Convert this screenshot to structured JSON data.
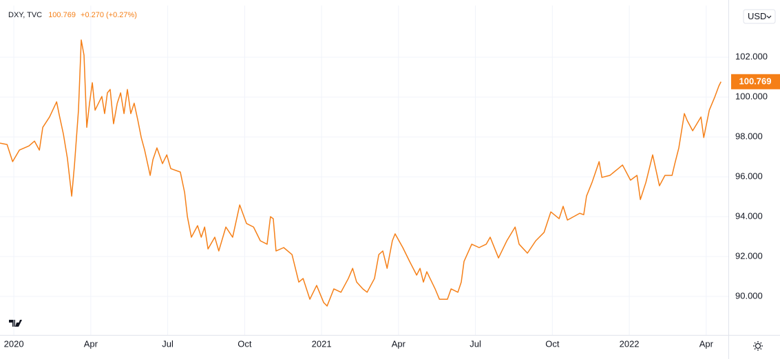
{
  "chart_data": {
    "type": "line",
    "symbol": "DXY, TVC",
    "change": "+0.270 (+0.27%)",
    "currency": "USD",
    "xlim": [
      2019.955,
      2022.322
    ],
    "xticks": [
      {
        "value": 2020,
        "label": "2020"
      },
      {
        "value": 2020.25,
        "label": "Apr"
      },
      {
        "value": 2020.5,
        "label": "Jul"
      },
      {
        "value": 2020.75,
        "label": "Oct"
      },
      {
        "value": 2021,
        "label": "2021"
      },
      {
        "value": 2021.25,
        "label": "Apr"
      },
      {
        "value": 2021.5,
        "label": "Jul"
      },
      {
        "value": 2021.75,
        "label": "Oct"
      },
      {
        "value": 2022,
        "label": "2022"
      },
      {
        "value": 2022.25,
        "label": "Apr"
      }
    ],
    "ylim": [
      88.07,
      104.59
    ],
    "yticks": [
      {
        "value": 90,
        "label": "90.000"
      },
      {
        "value": 92,
        "label": "92.000"
      },
      {
        "value": 94,
        "label": "94.000"
      },
      {
        "value": 96,
        "label": "96.000"
      },
      {
        "value": 98,
        "label": "98.000"
      },
      {
        "value": 100,
        "label": "100.000"
      },
      {
        "value": 102,
        "label": "102.000"
      }
    ],
    "grid": true,
    "series": [
      {
        "name": "DXY",
        "color": "#f57f17",
        "x": [
          2019.955,
          2019.978,
          2019.996,
          2020.018,
          2020.049,
          2020.067,
          2020.083,
          2020.094,
          2020.116,
          2020.139,
          2020.148,
          2020.161,
          2020.174,
          2020.188,
          2020.197,
          2020.21,
          2020.219,
          2020.228,
          2020.237,
          2020.246,
          2020.255,
          2020.264,
          2020.286,
          2020.295,
          2020.304,
          2020.313,
          2020.324,
          2020.336,
          2020.347,
          2020.358,
          2020.369,
          2020.38,
          2020.391,
          2020.403,
          2020.414,
          2020.425,
          2020.443,
          2020.452,
          2020.465,
          2020.483,
          2020.497,
          2020.51,
          2020.541,
          2020.555,
          2020.564,
          2020.577,
          2020.597,
          2020.609,
          2020.62,
          2020.631,
          2020.653,
          2020.666,
          2020.689,
          2020.711,
          2020.734,
          2020.756,
          2020.779,
          2020.801,
          2020.823,
          2020.834,
          2020.843,
          2020.852,
          2020.877,
          2020.904,
          2020.926,
          2020.94,
          2020.962,
          2020.984,
          2021.007,
          2021.018,
          2021.04,
          2021.063,
          2021.087,
          2021.101,
          2021.114,
          2021.134,
          2021.148,
          2021.172,
          2021.186,
          2021.199,
          2021.213,
          2021.23,
          2021.239,
          2021.264,
          2021.286,
          2021.309,
          2021.32,
          2021.331,
          2021.342,
          2021.369,
          2021.383,
          2021.409,
          2021.421,
          2021.443,
          2021.454,
          2021.463,
          2021.488,
          2021.512,
          2021.535,
          2021.548,
          2021.575,
          2021.602,
          2021.629,
          2021.642,
          2021.669,
          2021.696,
          2021.723,
          2021.745,
          2021.772,
          2021.785,
          2021.799,
          2021.839,
          2021.852,
          2021.861,
          2021.879,
          2021.902,
          2021.911,
          2021.937,
          2021.964,
          2021.978,
          2022.004,
          2022.025,
          2022.036,
          2022.054,
          2022.076,
          2022.098,
          2022.116,
          2022.139,
          2022.148,
          2022.161,
          2022.179,
          2022.188,
          2022.206,
          2022.233,
          2022.242,
          2022.26,
          2022.277,
          2022.291,
          2022.298
        ],
        "values": [
          97.69,
          97.62,
          96.76,
          97.34,
          97.55,
          97.79,
          97.34,
          98.48,
          99.0,
          99.76,
          99.07,
          98.14,
          96.93,
          95.03,
          96.59,
          99.34,
          102.86,
          102.1,
          98.48,
          99.69,
          100.72,
          99.34,
          100.03,
          99.17,
          100.21,
          100.38,
          98.66,
          99.69,
          100.21,
          99.17,
          100.38,
          99.17,
          99.69,
          98.83,
          97.97,
          97.34,
          96.07,
          96.86,
          97.45,
          96.66,
          97.1,
          96.41,
          96.24,
          95.21,
          94.0,
          92.97,
          93.55,
          92.97,
          93.48,
          92.38,
          92.97,
          92.28,
          93.48,
          92.97,
          94.59,
          93.66,
          93.48,
          92.79,
          92.62,
          94.0,
          93.9,
          92.28,
          92.45,
          92.1,
          90.72,
          90.9,
          89.86,
          90.55,
          89.69,
          89.52,
          90.38,
          90.21,
          90.9,
          91.41,
          90.72,
          90.38,
          90.21,
          90.9,
          92.1,
          92.28,
          91.41,
          92.79,
          93.14,
          92.45,
          91.76,
          91.07,
          91.41,
          90.72,
          91.24,
          90.38,
          89.86,
          89.86,
          90.38,
          90.21,
          90.72,
          91.76,
          92.62,
          92.45,
          92.62,
          92.97,
          91.93,
          92.79,
          93.48,
          92.62,
          92.17,
          92.79,
          93.21,
          94.24,
          93.9,
          94.52,
          93.83,
          94.17,
          94.1,
          95.03,
          95.72,
          96.76,
          95.97,
          96.07,
          96.41,
          96.59,
          95.83,
          96.07,
          94.86,
          95.72,
          97.1,
          95.55,
          96.07,
          96.07,
          96.66,
          97.45,
          99.17,
          98.83,
          98.31,
          99.0,
          97.97,
          99.34,
          99.97,
          100.55,
          100.769
        ]
      }
    ]
  }
}
